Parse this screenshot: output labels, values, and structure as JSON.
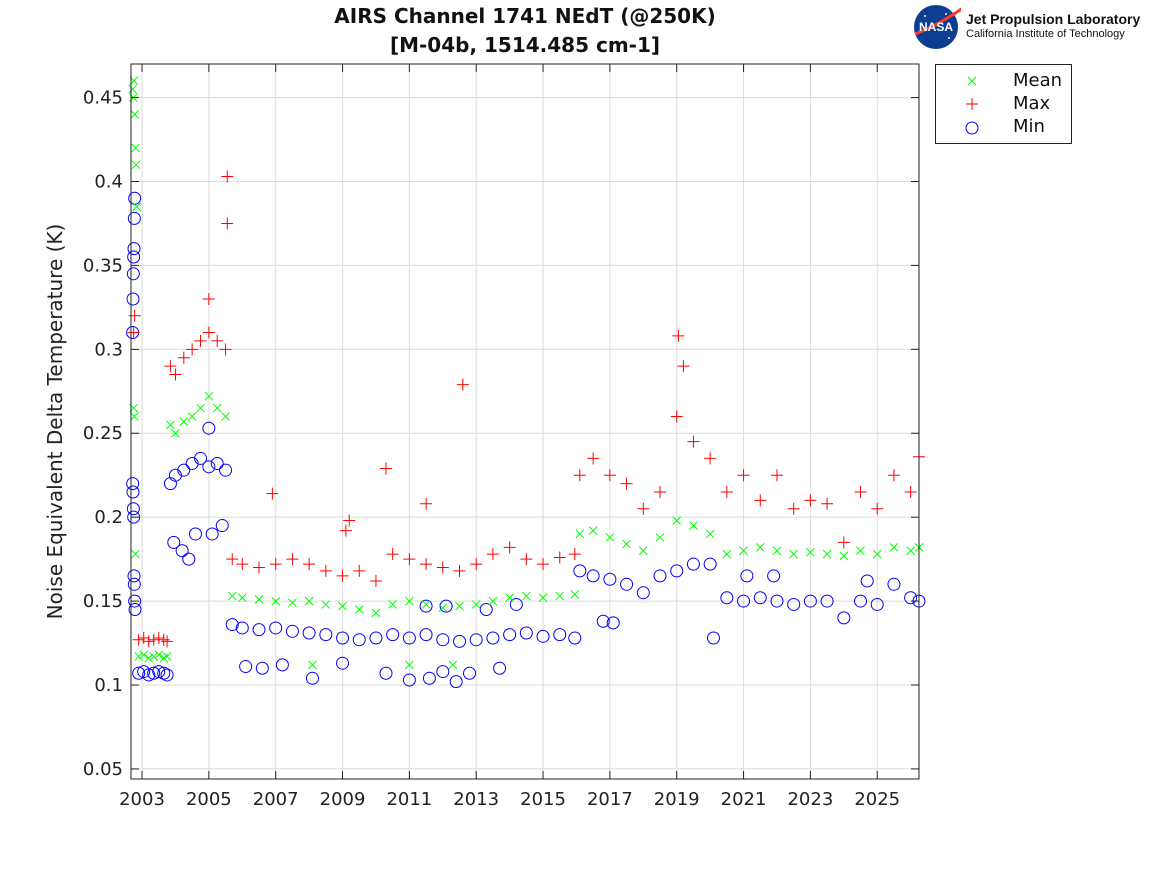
{
  "chart_data": {
    "type": "scatter",
    "title": [
      "AIRS Channel 1741 NEdT (@250K)",
      "[M-04b, 1514.485 cm-1]"
    ],
    "xlabel": "",
    "ylabel": "Noise Equivalent Delta Temperature (K)",
    "xlim": [
      2002.67,
      2026.25
    ],
    "ylim": [
      0.044,
      0.47
    ],
    "xticks": [
      2003,
      2005,
      2007,
      2009,
      2011,
      2013,
      2015,
      2017,
      2019,
      2021,
      2023,
      2025
    ],
    "yticks": [
      0.05,
      0.1,
      0.15,
      0.2,
      0.25,
      0.3,
      0.35,
      0.4,
      0.45
    ],
    "ytick_labels": [
      "0.05",
      "0.1",
      "0.15",
      "0.2",
      "0.25",
      "0.3",
      "0.35",
      "0.4",
      "0.45"
    ],
    "grid": true,
    "legend_placement": "outside-top-right",
    "series": [
      {
        "name": "Mean",
        "marker": "x",
        "color": "#00ff00",
        "points": [
          [
            2002.72,
            0.455
          ],
          [
            2002.74,
            0.45
          ],
          [
            2002.76,
            0.46
          ],
          [
            2002.78,
            0.44
          ],
          [
            2002.8,
            0.42
          ],
          [
            2002.82,
            0.41
          ],
          [
            2002.84,
            0.385
          ],
          [
            2002.75,
            0.265
          ],
          [
            2002.77,
            0.26
          ],
          [
            2002.8,
            0.178
          ],
          [
            2002.9,
            0.117
          ],
          [
            2003.05,
            0.118
          ],
          [
            2003.2,
            0.116
          ],
          [
            2003.35,
            0.117
          ],
          [
            2003.5,
            0.118
          ],
          [
            2003.65,
            0.116
          ],
          [
            2003.75,
            0.117
          ],
          [
            2003.85,
            0.255
          ],
          [
            2004.0,
            0.25
          ],
          [
            2004.25,
            0.257
          ],
          [
            2004.5,
            0.26
          ],
          [
            2004.75,
            0.265
          ],
          [
            2005.0,
            0.272
          ],
          [
            2005.25,
            0.265
          ],
          [
            2005.5,
            0.26
          ],
          [
            2005.7,
            0.153
          ],
          [
            2006.0,
            0.152
          ],
          [
            2006.5,
            0.151
          ],
          [
            2007.0,
            0.15
          ],
          [
            2007.5,
            0.149
          ],
          [
            2008.0,
            0.15
          ],
          [
            2008.5,
            0.148
          ],
          [
            2009.0,
            0.147
          ],
          [
            2009.5,
            0.145
          ],
          [
            2010.0,
            0.143
          ],
          [
            2010.5,
            0.148
          ],
          [
            2011.0,
            0.15
          ],
          [
            2011.5,
            0.148
          ],
          [
            2012.0,
            0.146
          ],
          [
            2012.5,
            0.147
          ],
          [
            2013.0,
            0.148
          ],
          [
            2013.5,
            0.15
          ],
          [
            2014.0,
            0.152
          ],
          [
            2014.5,
            0.153
          ],
          [
            2015.0,
            0.152
          ],
          [
            2015.5,
            0.153
          ],
          [
            2015.95,
            0.154
          ],
          [
            2008.1,
            0.112
          ],
          [
            2011.0,
            0.112
          ],
          [
            2012.3,
            0.112
          ],
          [
            2016.1,
            0.19
          ],
          [
            2016.5,
            0.192
          ],
          [
            2017.0,
            0.188
          ],
          [
            2017.5,
            0.184
          ],
          [
            2018.0,
            0.18
          ],
          [
            2018.5,
            0.188
          ],
          [
            2019.0,
            0.198
          ],
          [
            2019.5,
            0.195
          ],
          [
            2020.0,
            0.19
          ],
          [
            2020.5,
            0.178
          ],
          [
            2021.0,
            0.18
          ],
          [
            2021.5,
            0.182
          ],
          [
            2022.0,
            0.18
          ],
          [
            2022.5,
            0.178
          ],
          [
            2023.0,
            0.179
          ],
          [
            2023.5,
            0.178
          ],
          [
            2024.0,
            0.177
          ],
          [
            2024.5,
            0.18
          ],
          [
            2025.0,
            0.178
          ],
          [
            2025.5,
            0.182
          ],
          [
            2026.0,
            0.18
          ],
          [
            2026.25,
            0.182
          ]
        ]
      },
      {
        "name": "Max",
        "marker": "+",
        "color": "#ff0000",
        "points": [
          [
            2002.75,
            0.31
          ],
          [
            2002.78,
            0.32
          ],
          [
            2002.9,
            0.127
          ],
          [
            2003.05,
            0.128
          ],
          [
            2003.2,
            0.126
          ],
          [
            2003.35,
            0.127
          ],
          [
            2003.5,
            0.128
          ],
          [
            2003.65,
            0.127
          ],
          [
            2003.75,
            0.126
          ],
          [
            2003.85,
            0.29
          ],
          [
            2004.0,
            0.285
          ],
          [
            2004.25,
            0.295
          ],
          [
            2004.5,
            0.3
          ],
          [
            2004.75,
            0.305
          ],
          [
            2005.0,
            0.31
          ],
          [
            2005.25,
            0.305
          ],
          [
            2005.5,
            0.3
          ],
          [
            2005.55,
            0.403
          ],
          [
            2005.55,
            0.375
          ],
          [
            2005.0,
            0.33
          ],
          [
            2005.7,
            0.175
          ],
          [
            2006.0,
            0.172
          ],
          [
            2006.5,
            0.17
          ],
          [
            2007.0,
            0.172
          ],
          [
            2007.5,
            0.175
          ],
          [
            2008.0,
            0.172
          ],
          [
            2008.5,
            0.168
          ],
          [
            2009.0,
            0.165
          ],
          [
            2009.5,
            0.168
          ],
          [
            2010.0,
            0.162
          ],
          [
            2010.5,
            0.178
          ],
          [
            2011.0,
            0.175
          ],
          [
            2011.5,
            0.172
          ],
          [
            2012.0,
            0.17
          ],
          [
            2012.5,
            0.168
          ],
          [
            2013.0,
            0.172
          ],
          [
            2013.5,
            0.178
          ],
          [
            2014.0,
            0.182
          ],
          [
            2014.5,
            0.175
          ],
          [
            2015.0,
            0.172
          ],
          [
            2015.5,
            0.176
          ],
          [
            2015.95,
            0.178
          ],
          [
            2006.9,
            0.214
          ],
          [
            2010.3,
            0.229
          ],
          [
            2011.5,
            0.208
          ],
          [
            2012.6,
            0.279
          ],
          [
            2009.2,
            0.198
          ],
          [
            2009.1,
            0.192
          ],
          [
            2016.1,
            0.225
          ],
          [
            2016.5,
            0.235
          ],
          [
            2017.0,
            0.225
          ],
          [
            2017.5,
            0.22
          ],
          [
            2018.0,
            0.205
          ],
          [
            2018.5,
            0.215
          ],
          [
            2019.0,
            0.26
          ],
          [
            2019.2,
            0.29
          ],
          [
            2019.05,
            0.308
          ],
          [
            2019.5,
            0.245
          ],
          [
            2020.0,
            0.235
          ],
          [
            2020.5,
            0.215
          ],
          [
            2021.0,
            0.225
          ],
          [
            2021.5,
            0.21
          ],
          [
            2022.0,
            0.225
          ],
          [
            2022.5,
            0.205
          ],
          [
            2023.0,
            0.21
          ],
          [
            2023.5,
            0.208
          ],
          [
            2024.0,
            0.185
          ],
          [
            2024.5,
            0.215
          ],
          [
            2025.0,
            0.205
          ],
          [
            2025.5,
            0.225
          ],
          [
            2026.0,
            0.215
          ],
          [
            2026.25,
            0.236
          ]
        ]
      },
      {
        "name": "Min",
        "marker": "o",
        "color": "#0000ff",
        "points": [
          [
            2002.72,
            0.31
          ],
          [
            2002.73,
            0.33
          ],
          [
            2002.74,
            0.345
          ],
          [
            2002.75,
            0.355
          ],
          [
            2002.76,
            0.36
          ],
          [
            2002.77,
            0.378
          ],
          [
            2002.78,
            0.39
          ],
          [
            2002.72,
            0.22
          ],
          [
            2002.73,
            0.215
          ],
          [
            2002.74,
            0.205
          ],
          [
            2002.75,
            0.2
          ],
          [
            2002.76,
            0.165
          ],
          [
            2002.77,
            0.16
          ],
          [
            2002.78,
            0.15
          ],
          [
            2002.79,
            0.145
          ],
          [
            2002.9,
            0.107
          ],
          [
            2003.05,
            0.108
          ],
          [
            2003.2,
            0.106
          ],
          [
            2003.35,
            0.107
          ],
          [
            2003.5,
            0.108
          ],
          [
            2003.65,
            0.107
          ],
          [
            2003.75,
            0.106
          ],
          [
            2003.85,
            0.22
          ],
          [
            2003.95,
            0.185
          ],
          [
            2004.0,
            0.225
          ],
          [
            2004.2,
            0.18
          ],
          [
            2004.25,
            0.228
          ],
          [
            2004.5,
            0.232
          ],
          [
            2004.6,
            0.19
          ],
          [
            2004.75,
            0.235
          ],
          [
            2005.0,
            0.23
          ],
          [
            2005.1,
            0.19
          ],
          [
            2005.25,
            0.232
          ],
          [
            2005.4,
            0.195
          ],
          [
            2005.5,
            0.228
          ],
          [
            2004.4,
            0.175
          ],
          [
            2005.0,
            0.253
          ],
          [
            2005.7,
            0.136
          ],
          [
            2006.0,
            0.134
          ],
          [
            2006.5,
            0.133
          ],
          [
            2007.0,
            0.134
          ],
          [
            2007.5,
            0.132
          ],
          [
            2008.0,
            0.131
          ],
          [
            2008.5,
            0.13
          ],
          [
            2009.0,
            0.128
          ],
          [
            2009.5,
            0.127
          ],
          [
            2010.0,
            0.128
          ],
          [
            2010.5,
            0.13
          ],
          [
            2011.0,
            0.128
          ],
          [
            2011.5,
            0.13
          ],
          [
            2012.0,
            0.127
          ],
          [
            2012.5,
            0.126
          ],
          [
            2013.0,
            0.127
          ],
          [
            2013.5,
            0.128
          ],
          [
            2014.0,
            0.13
          ],
          [
            2014.5,
            0.131
          ],
          [
            2015.0,
            0.129
          ],
          [
            2015.5,
            0.13
          ],
          [
            2015.95,
            0.128
          ],
          [
            2006.1,
            0.111
          ],
          [
            2006.6,
            0.11
          ],
          [
            2007.2,
            0.112
          ],
          [
            2008.1,
            0.104
          ],
          [
            2009.0,
            0.113
          ],
          [
            2010.3,
            0.107
          ],
          [
            2011.0,
            0.103
          ],
          [
            2011.6,
            0.104
          ],
          [
            2012.0,
            0.108
          ],
          [
            2012.4,
            0.102
          ],
          [
            2012.8,
            0.107
          ],
          [
            2013.7,
            0.11
          ],
          [
            2011.5,
            0.147
          ],
          [
            2012.1,
            0.147
          ],
          [
            2013.3,
            0.145
          ],
          [
            2014.2,
            0.148
          ],
          [
            2016.1,
            0.168
          ],
          [
            2016.5,
            0.165
          ],
          [
            2017.0,
            0.163
          ],
          [
            2017.5,
            0.16
          ],
          [
            2018.0,
            0.155
          ],
          [
            2018.5,
            0.165
          ],
          [
            2019.0,
            0.168
          ],
          [
            2019.5,
            0.172
          ],
          [
            2020.0,
            0.172
          ],
          [
            2020.1,
            0.128
          ],
          [
            2020.5,
            0.152
          ],
          [
            2021.0,
            0.15
          ],
          [
            2021.1,
            0.165
          ],
          [
            2021.5,
            0.152
          ],
          [
            2021.9,
            0.165
          ],
          [
            2022.0,
            0.15
          ],
          [
            2022.5,
            0.148
          ],
          [
            2023.0,
            0.15
          ],
          [
            2023.5,
            0.15
          ],
          [
            2024.0,
            0.14
          ],
          [
            2024.5,
            0.15
          ],
          [
            2024.7,
            0.162
          ],
          [
            2025.0,
            0.148
          ],
          [
            2025.5,
            0.16
          ],
          [
            2026.0,
            0.152
          ],
          [
            2026.25,
            0.15
          ],
          [
            2016.8,
            0.138
          ],
          [
            2017.1,
            0.137
          ]
        ]
      }
    ]
  },
  "logo": {
    "emblem": "NASA",
    "line1": "Jet Propulsion Laboratory",
    "line2": "California Institute of Technology"
  }
}
